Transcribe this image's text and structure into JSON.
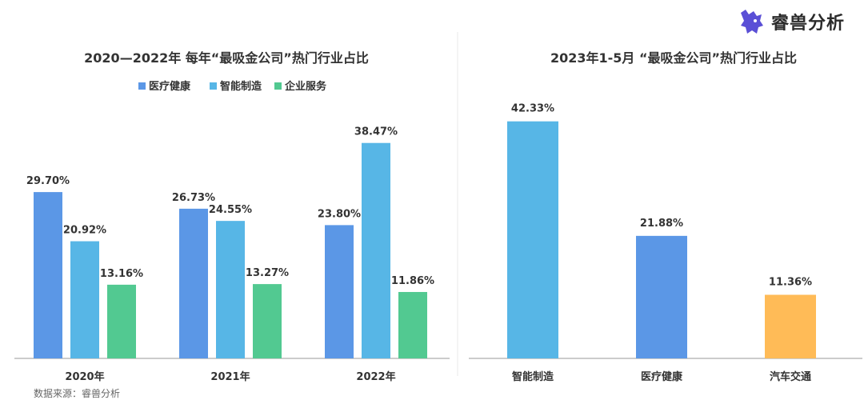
{
  "logo": {
    "text": "睿兽分析",
    "icon": "beast-icon"
  },
  "source": "数据来源：睿兽分析",
  "colors": {
    "healthcare": "#5B97E6",
    "manufacturing": "#57B6E6",
    "enterprise": "#52C991",
    "auto": "#FFBB57",
    "axis": "#999999"
  },
  "chart_data": [
    {
      "type": "bar",
      "title": "2020—2022年 每年“最吸金公司”热门行业占比",
      "categories": [
        "2020年",
        "2021年",
        "2022年"
      ],
      "series": [
        {
          "name": "医疗健康",
          "values": [
            29.7,
            26.73,
            23.8
          ],
          "labels": [
            "29.70%",
            "26.73%",
            "23.80%"
          ]
        },
        {
          "name": "智能制造",
          "values": [
            20.92,
            24.55,
            38.47
          ],
          "labels": [
            "20.92%",
            "24.55%",
            "38.47%"
          ]
        },
        {
          "name": "企业服务",
          "values": [
            13.16,
            13.27,
            11.86
          ],
          "labels": [
            "13.16%",
            "13.27%",
            "11.86%"
          ]
        }
      ],
      "legend": "top-center",
      "xlabel": "",
      "ylabel": "",
      "unit": "%"
    },
    {
      "type": "bar",
      "title": "2023年1-5月 “最吸金公司”热门行业占比",
      "categories": [
        "智能制造",
        "医疗健康",
        "汽车交通"
      ],
      "values": [
        42.33,
        21.88,
        11.36
      ],
      "labels": [
        "42.33%",
        "21.88%",
        "11.36%"
      ],
      "xlabel": "",
      "ylabel": "",
      "unit": "%"
    }
  ]
}
